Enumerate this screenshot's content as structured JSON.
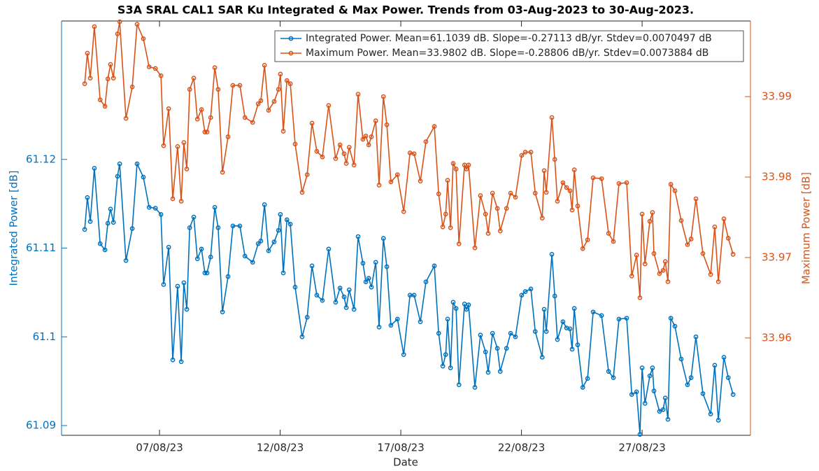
{
  "chart_data": {
    "type": "line",
    "title": "S3A SRAL CAL1 SAR Ku Integrated & Max Power. Trends from 03-Aug-2023 to 30-Aug-2023.",
    "xlabel": "Date",
    "ylabel": "Integrated Power [dB]",
    "y2label": "Maximum Power [dB]",
    "xlim": [
      2.94,
      31.49
    ],
    "xticks": [
      {
        "value": 7,
        "label": "07/08/23"
      },
      {
        "value": 12,
        "label": "12/08/23"
      },
      {
        "value": 17,
        "label": "17/08/23"
      },
      {
        "value": 22,
        "label": "22/08/23"
      },
      {
        "value": 27,
        "label": "27/08/23"
      }
    ],
    "ylim": [
      61.0889,
      61.1356
    ],
    "yticks": [
      61.09,
      61.1,
      61.11,
      61.12
    ],
    "y2lim": [
      33.9479,
      33.9994
    ],
    "y2ticks": [
      33.96,
      33.97,
      33.98,
      33.99
    ],
    "legend": "top-right",
    "x": [
      3.9,
      4.01,
      4.13,
      4.3,
      4.54,
      4.74,
      4.86,
      4.97,
      5.09,
      5.26,
      5.35,
      5.61,
      5.87,
      6.07,
      6.33,
      6.57,
      6.83,
      7.06,
      7.17,
      7.38,
      7.55,
      7.75,
      7.9,
      8.01,
      8.13,
      8.25,
      8.42,
      8.57,
      8.74,
      8.88,
      8.97,
      9.12,
      9.29,
      9.43,
      9.61,
      9.84,
      10.04,
      10.33,
      10.54,
      10.86,
      11.09,
      11.2,
      11.35,
      11.52,
      11.75,
      11.93,
      12.01,
      12.13,
      12.28,
      12.42,
      12.62,
      12.91,
      13.12,
      13.32,
      13.52,
      13.75,
      14.01,
      14.3,
      14.48,
      14.65,
      14.74,
      14.86,
      15.06,
      15.23,
      15.43,
      15.55,
      15.67,
      15.78,
      15.96,
      16.1,
      16.28,
      16.42,
      16.59,
      16.86,
      17.12,
      17.38,
      17.55,
      17.81,
      18.04,
      18.39,
      18.57,
      18.74,
      18.86,
      18.94,
      19.06,
      19.17,
      19.29,
      19.41,
      19.64,
      19.72,
      19.81,
      20.07,
      20.3,
      20.51,
      20.62,
      20.8,
      21.0,
      21.12,
      21.38,
      21.55,
      21.75,
      22.01,
      22.16,
      22.39,
      22.57,
      22.86,
      22.94,
      23.03,
      23.26,
      23.38,
      23.49,
      23.72,
      23.87,
      24.01,
      24.1,
      24.19,
      24.33,
      24.54,
      24.74,
      24.97,
      25.32,
      25.61,
      25.81,
      26.04,
      26.36,
      26.57,
      26.77,
      26.91,
      27.0,
      27.12,
      27.32,
      27.43,
      27.49,
      27.72,
      27.87,
      27.96,
      28.07,
      28.19,
      28.36,
      28.62,
      28.88,
      29.03,
      29.23,
      29.52,
      29.84,
      30.01,
      30.16,
      30.39,
      30.57,
      30.77
    ],
    "series": [
      {
        "name": "Integrated Power. Mean=61.1039 dB. Slope=-0.27113 dB/yr. Stdev=0.0070497 dB",
        "color": "#0072bd",
        "axis": "y",
        "values": [
          61.1121,
          61.1157,
          61.113,
          61.119,
          61.1105,
          61.1098,
          61.1128,
          61.1144,
          61.1129,
          61.1181,
          61.1195,
          61.1086,
          61.1122,
          61.1195,
          61.118,
          61.1146,
          61.1145,
          61.1138,
          61.1059,
          61.1101,
          61.0974,
          61.1057,
          61.0972,
          61.1061,
          61.1031,
          61.1123,
          61.1135,
          61.1088,
          61.1099,
          61.1072,
          61.1072,
          61.109,
          61.1146,
          61.1123,
          61.1028,
          61.1068,
          61.1125,
          61.1125,
          61.1091,
          61.1084,
          61.1105,
          61.1108,
          61.1149,
          61.1097,
          61.1107,
          61.112,
          61.1138,
          61.1072,
          61.1132,
          61.1127,
          61.1056,
          61.1,
          61.1022,
          61.108,
          61.1047,
          61.1041,
          61.1099,
          61.1039,
          61.1055,
          61.1045,
          61.1033,
          61.1053,
          61.1031,
          61.1113,
          61.1083,
          61.1062,
          61.1066,
          61.1056,
          61.1084,
          61.1011,
          61.1111,
          61.1079,
          61.1013,
          61.102,
          61.098,
          61.1047,
          61.1047,
          61.1017,
          61.1062,
          61.108,
          61.1004,
          61.0967,
          61.098,
          61.102,
          61.0965,
          61.1039,
          61.1032,
          61.0946,
          61.1037,
          61.1031,
          61.1036,
          61.0943,
          61.1002,
          61.0983,
          61.096,
          61.1004,
          61.0987,
          61.0961,
          61.0987,
          61.1004,
          61.1,
          61.1047,
          61.1051,
          61.1054,
          61.1006,
          61.0977,
          61.1031,
          61.1006,
          61.1093,
          61.1046,
          61.0997,
          61.1017,
          61.101,
          61.1009,
          61.0986,
          61.1032,
          61.0991,
          61.0943,
          61.0953,
          61.1028,
          61.1024,
          61.0961,
          61.0954,
          61.102,
          61.1021,
          61.0935,
          61.0938,
          61.089,
          61.0965,
          61.0925,
          61.0956,
          61.0965,
          61.0939,
          61.0916,
          61.0918,
          61.0931,
          61.0907,
          61.1021,
          61.1012,
          61.0975,
          61.0946,
          61.0954,
          61.1,
          61.0936,
          61.0913,
          61.0968,
          61.0906,
          61.0977,
          61.0954,
          61.0935
        ]
      },
      {
        "name": "Maximum Power. Mean=33.9802 dB. Slope=-0.28806 dB/yr. Stdev=0.0073884 dB",
        "color": "#d95319",
        "axis": "y2",
        "values": [
          33.9916,
          33.9954,
          33.9923,
          33.9987,
          33.9896,
          33.9888,
          33.9922,
          33.994,
          33.9923,
          33.9978,
          33.9993,
          33.9873,
          33.9912,
          33.999,
          33.9972,
          33.9937,
          33.9935,
          33.9926,
          33.9839,
          33.9885,
          33.9773,
          33.9838,
          33.977,
          33.9843,
          33.981,
          33.9909,
          33.9923,
          33.9872,
          33.9884,
          33.9856,
          33.9856,
          33.9874,
          33.9936,
          33.9909,
          33.9806,
          33.985,
          33.9914,
          33.9914,
          33.9874,
          33.9868,
          33.9891,
          33.9895,
          33.9939,
          33.9883,
          33.9894,
          33.9909,
          33.9928,
          33.9857,
          33.992,
          33.9916,
          33.9841,
          33.9781,
          33.9803,
          33.9867,
          33.9832,
          33.9825,
          33.9889,
          33.9823,
          33.984,
          33.9829,
          33.9817,
          33.9837,
          33.9815,
          33.9903,
          33.9847,
          33.9851,
          33.984,
          33.985,
          33.987,
          33.979,
          33.99,
          33.9865,
          33.9794,
          33.9803,
          33.9757,
          33.983,
          33.9829,
          33.9795,
          33.9844,
          33.9863,
          33.9779,
          33.9738,
          33.9754,
          33.9796,
          33.9737,
          33.9817,
          33.981,
          33.9717,
          33.9815,
          33.981,
          33.9815,
          33.9712,
          33.9777,
          33.9754,
          33.973,
          33.978,
          33.9761,
          33.9733,
          33.9761,
          33.978,
          33.9775,
          33.9827,
          33.9831,
          33.9831,
          33.978,
          33.9749,
          33.9808,
          33.9781,
          33.9874,
          33.9822,
          33.977,
          33.9793,
          33.9787,
          33.9783,
          33.9759,
          33.9809,
          33.9764,
          33.9711,
          33.9722,
          33.9799,
          33.9798,
          33.973,
          33.972,
          33.9792,
          33.9793,
          33.9677,
          33.9703,
          33.965,
          33.9754,
          33.9692,
          33.9745,
          33.9756,
          33.9705,
          33.968,
          33.9684,
          33.9695,
          33.967,
          33.9791,
          33.9783,
          33.9746,
          33.9716,
          33.9723,
          33.9773,
          33.9705,
          33.9679,
          33.9738,
          33.967,
          33.9748,
          33.9724,
          33.9704
        ]
      }
    ]
  }
}
